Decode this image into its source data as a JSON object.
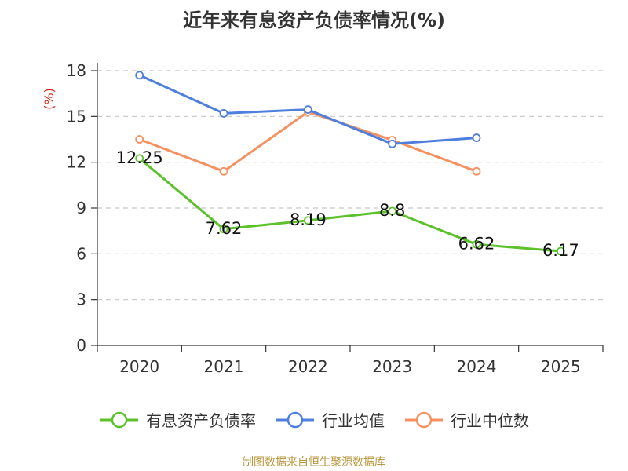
{
  "chart_data": {
    "type": "line",
    "title": "近年来有息资产负债率情况(%)",
    "ylabel": "(%)",
    "x": [
      "2020",
      "2021",
      "2022",
      "2023",
      "2024",
      "2025"
    ],
    "yticks": [
      "0",
      "3",
      "6",
      "9",
      "12",
      "15",
      "18"
    ],
    "ylim": [
      0,
      18
    ],
    "grid": true,
    "legend_position": "bottom",
    "series": [
      {
        "name": "有息资产负债率",
        "color": "#5cc12a",
        "values": [
          12.25,
          7.62,
          8.19,
          8.8,
          6.62,
          6.17
        ],
        "labels": [
          "12.25",
          "7.62",
          "8.19",
          "8.8",
          "6.62",
          "6.17"
        ]
      },
      {
        "name": "行业均值",
        "color": "#4f7fdc",
        "values": [
          17.7,
          15.2,
          15.45,
          13.2,
          13.6,
          null
        ]
      },
      {
        "name": "行业中位数",
        "color": "#f59061",
        "values": [
          13.5,
          11.4,
          15.3,
          13.45,
          11.4,
          null
        ]
      }
    ]
  },
  "footer": {
    "source": "制图数据来自恒生聚源数据库"
  }
}
